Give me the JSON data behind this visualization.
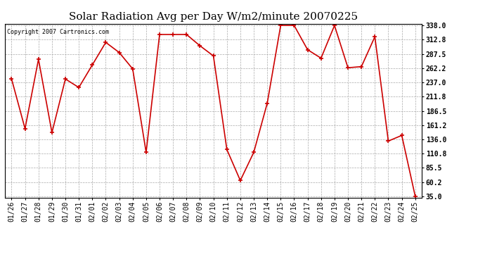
{
  "title": "Solar Radiation Avg per Day W/m2/minute 20070225",
  "copyright_text": "Copyright 2007 Cartronics.com",
  "dates": [
    "01/26",
    "01/27",
    "01/28",
    "01/29",
    "01/30",
    "01/31",
    "02/01",
    "02/02",
    "02/03",
    "02/04",
    "02/05",
    "02/06",
    "02/07",
    "02/08",
    "02/09",
    "02/10",
    "02/11",
    "02/12",
    "02/13",
    "02/14",
    "02/15",
    "02/16",
    "02/17",
    "02/18",
    "02/19",
    "02/20",
    "02/21",
    "02/22",
    "02/23",
    "02/24",
    "02/25"
  ],
  "values": [
    243,
    155,
    278,
    148,
    243,
    228,
    268,
    308,
    290,
    261,
    113,
    322,
    322,
    322,
    302,
    284,
    118,
    63,
    113,
    200,
    338,
    338,
    295,
    280,
    338,
    263,
    265,
    318,
    133,
    143,
    35
  ],
  "line_color": "#cc0000",
  "marker_color": "#cc0000",
  "bg_color": "#ffffff",
  "plot_bg_color": "#ffffff",
  "grid_color": "#aaaaaa",
  "yticks": [
    35.0,
    60.2,
    85.5,
    110.8,
    136.0,
    161.2,
    186.5,
    211.8,
    237.0,
    262.2,
    287.5,
    312.8,
    338.0
  ],
  "ylim": [
    35.0,
    338.0
  ],
  "title_fontsize": 11,
  "tick_fontsize": 7
}
